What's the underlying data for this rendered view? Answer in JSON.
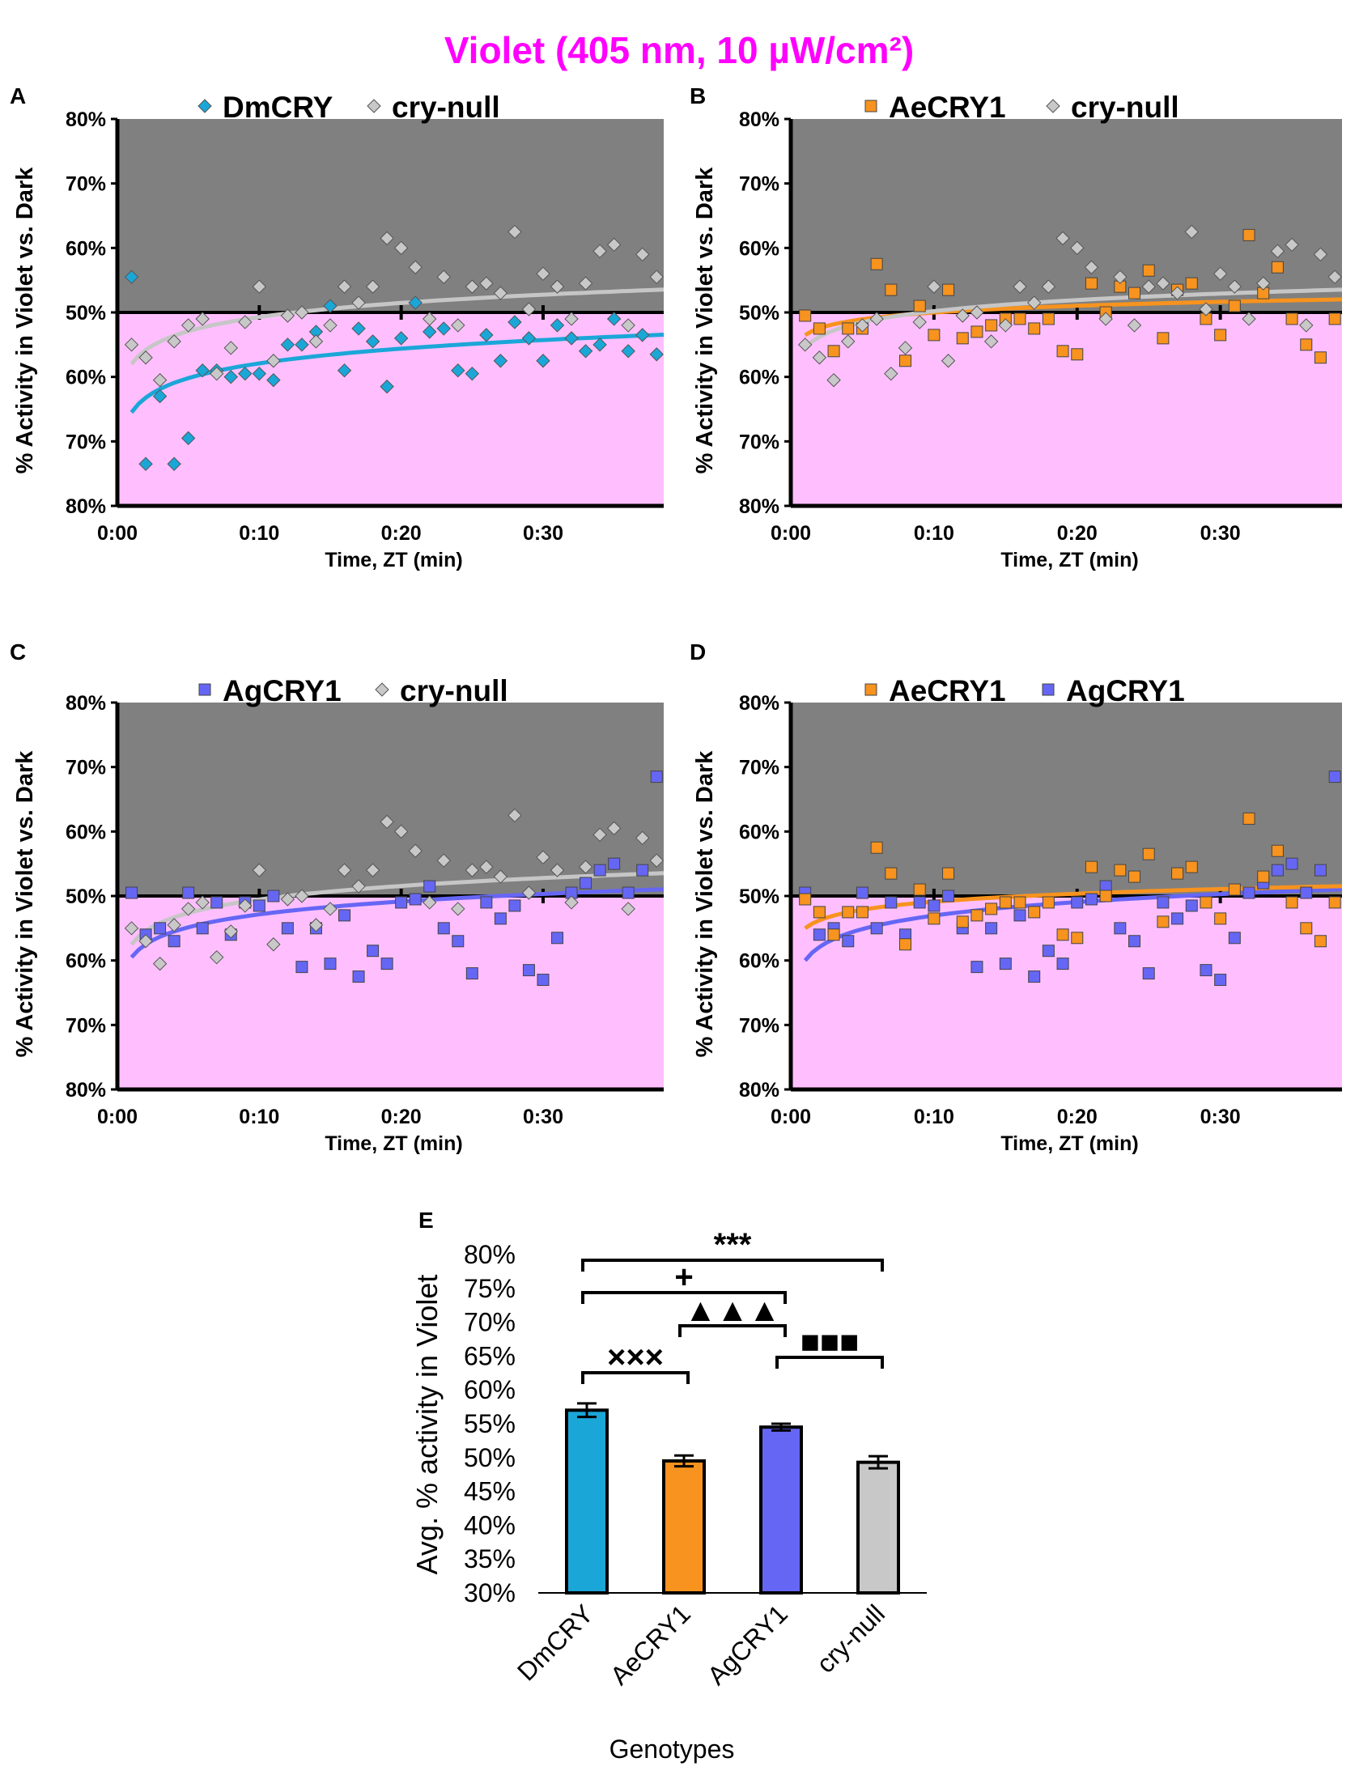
{
  "figure": {
    "title": "Violet (405 nm, 10 µW/cm²)"
  },
  "colors": {
    "DmCRY": "#1ba6d8",
    "AeCRY1": "#f7931e",
    "AgCRY1": "#6666f5",
    "cry-null": "#c8c8c8",
    "cry-null-fit": "#c6c6c6",
    "dark_bg": "#808080",
    "violet_bg": "#ffbfff",
    "title": "#ff00ff"
  },
  "chart_data": [
    {
      "id": "A",
      "type": "scatter",
      "panel_label": "A",
      "xlabel": "Time, ZT (min)",
      "ylabel": "% Activity in Violet vs. Dark",
      "xlim": [
        0,
        38.5
      ],
      "ylim": [
        -30,
        30
      ],
      "x_ticks": [
        "0:00",
        "0:10",
        "0:20",
        "0:30"
      ],
      "y_ticks": [
        "80%",
        "70%",
        "60%",
        "50%",
        "60%",
        "70%",
        "80%"
      ],
      "legend": [
        "DmCRY",
        "cry-null"
      ],
      "series": [
        {
          "name": "DmCRY",
          "marker": "diamond",
          "color_key": "DmCRY",
          "x": [
            1,
            2,
            3,
            4,
            5,
            6,
            7,
            8,
            9,
            10,
            11,
            12,
            13,
            14,
            15,
            16,
            17,
            18,
            19,
            20,
            21,
            22,
            23,
            24,
            25,
            26,
            27,
            28,
            29,
            30,
            31,
            32,
            33,
            34,
            35,
            36,
            37,
            38
          ],
          "y": [
            5.5,
            -23.5,
            -13,
            -23.5,
            -19.5,
            -9,
            -9,
            -10,
            -9.5,
            -9.5,
            -10.5,
            -5,
            -5,
            -3,
            1,
            -9,
            -2.5,
            -4.5,
            -11.5,
            -4,
            1.5,
            -3,
            -2.5,
            -9,
            -9.5,
            -3.5,
            -7.5,
            -1.5,
            -4,
            -7.5,
            -2,
            -4,
            -6,
            -5,
            -1,
            -6,
            -3.5,
            -6.5
          ],
          "fit": [
            -15.5,
            -3.5
          ]
        },
        {
          "name": "cry-null",
          "marker": "diamond",
          "color_key": "cry-null",
          "x": [
            1,
            2,
            3,
            4,
            5,
            6,
            7,
            8,
            9,
            10,
            11,
            12,
            13,
            14,
            15,
            16,
            17,
            18,
            19,
            20,
            21,
            22,
            23,
            24,
            25,
            26,
            27,
            28,
            29,
            30,
            31,
            32,
            33,
            34,
            35,
            36,
            37,
            38
          ],
          "y": [
            -5,
            -7,
            -10.5,
            -4.5,
            -2,
            -1,
            -9.5,
            -5.5,
            -1.5,
            4,
            -7.5,
            -0.5,
            0,
            -4.5,
            -2,
            4,
            1.5,
            4,
            11.5,
            10,
            7,
            -1,
            5.5,
            -2,
            4,
            4.5,
            3,
            12.5,
            0.5,
            6,
            4,
            -1,
            4.5,
            9.5,
            10.5,
            -2,
            9,
            5.5
          ],
          "fit": [
            -8,
            3.5
          ]
        }
      ]
    },
    {
      "id": "B",
      "type": "scatter",
      "panel_label": "B",
      "xlabel": "Time, ZT (min)",
      "ylabel": "% Activity in Violet vs. Dark",
      "xlim": [
        0,
        38.5
      ],
      "ylim": [
        -30,
        30
      ],
      "x_ticks": [
        "0:00",
        "0:10",
        "0:20",
        "0:30"
      ],
      "y_ticks": [
        "80%",
        "70%",
        "60%",
        "50%",
        "60%",
        "70%",
        "80%"
      ],
      "legend": [
        "AeCRY1",
        "cry-null"
      ],
      "series": [
        {
          "name": "AeCRY1",
          "marker": "square",
          "color_key": "AeCRY1",
          "x": [
            1,
            2,
            3,
            4,
            5,
            6,
            7,
            8,
            9,
            10,
            11,
            12,
            13,
            14,
            15,
            16,
            17,
            18,
            19,
            20,
            21,
            22,
            23,
            24,
            25,
            26,
            27,
            28,
            29,
            30,
            31,
            32,
            33,
            34,
            35,
            36,
            37,
            38
          ],
          "y": [
            -0.5,
            -2.5,
            -6,
            -2.5,
            -2.5,
            7.5,
            3.5,
            -7.5,
            1,
            -3.5,
            3.5,
            -4,
            -3,
            -2,
            -1,
            -1,
            -2.5,
            -1,
            -6,
            -6.5,
            4.5,
            0,
            4,
            3,
            6.5,
            -4,
            3.5,
            4.5,
            -1,
            -3.5,
            1,
            12,
            3,
            7,
            -1,
            -5,
            -7,
            -1
          ],
          "fit": [
            -3.5,
            2
          ]
        },
        {
          "name": "cry-null",
          "marker": "diamond",
          "color_key": "cry-null",
          "x": [
            1,
            2,
            3,
            4,
            5,
            6,
            7,
            8,
            9,
            10,
            11,
            12,
            13,
            14,
            15,
            16,
            17,
            18,
            19,
            20,
            21,
            22,
            23,
            24,
            25,
            26,
            27,
            28,
            29,
            30,
            31,
            32,
            33,
            34,
            35,
            36,
            37,
            38
          ],
          "y": [
            -5,
            -7,
            -10.5,
            -4.5,
            -2,
            -1,
            -9.5,
            -5.5,
            -1.5,
            4,
            -7.5,
            -0.5,
            0,
            -4.5,
            -2,
            4,
            1.5,
            4,
            11.5,
            10,
            7,
            -1,
            5.5,
            -2,
            4,
            4.5,
            3,
            12.5,
            0.5,
            6,
            4,
            -1,
            4.5,
            9.5,
            10.5,
            -2,
            9,
            5.5
          ],
          "fit": [
            -5.5,
            3.5
          ]
        }
      ]
    },
    {
      "id": "C",
      "type": "scatter",
      "panel_label": "C",
      "xlabel": "Time, ZT (min)",
      "ylabel": "% Activity in Violet vs. Dark",
      "xlim": [
        0,
        38.5
      ],
      "ylim": [
        -30,
        30
      ],
      "x_ticks": [
        "0:00",
        "0:10",
        "0:20",
        "0:30"
      ],
      "y_ticks": [
        "80%",
        "70%",
        "60%",
        "50%",
        "60%",
        "70%",
        "80%"
      ],
      "legend": [
        "AgCRY1",
        "cry-null"
      ],
      "series": [
        {
          "name": "AgCRY1",
          "marker": "square",
          "color_key": "AgCRY1",
          "x": [
            1,
            2,
            3,
            4,
            5,
            6,
            7,
            8,
            9,
            10,
            11,
            12,
            13,
            14,
            15,
            16,
            17,
            18,
            19,
            20,
            21,
            22,
            23,
            24,
            25,
            26,
            27,
            28,
            29,
            30,
            31,
            32,
            33,
            34,
            35,
            36,
            37,
            38
          ],
          "y": [
            0.5,
            -6,
            -5,
            -7,
            0.5,
            -5,
            -1,
            -6,
            -1,
            -1.5,
            0,
            -5,
            -11,
            -5,
            -10.5,
            -3,
            -12.5,
            -8.5,
            -10.5,
            -1,
            -0.5,
            1.5,
            -5,
            -7,
            -12,
            -1,
            -3.5,
            -1.5,
            -11.5,
            -13,
            -6.5,
            0.5,
            2,
            4,
            5,
            0.5,
            4,
            18.5
          ],
          "fit": [
            -9.5,
            1
          ]
        },
        {
          "name": "cry-null",
          "marker": "diamond",
          "color_key": "cry-null",
          "x": [
            1,
            2,
            3,
            4,
            5,
            6,
            7,
            8,
            9,
            10,
            11,
            12,
            13,
            14,
            15,
            16,
            17,
            18,
            19,
            20,
            21,
            22,
            23,
            24,
            25,
            26,
            27,
            28,
            29,
            30,
            31,
            32,
            33,
            34,
            35,
            36,
            37,
            38
          ],
          "y": [
            -5,
            -7,
            -10.5,
            -4.5,
            -2,
            -1,
            -9.5,
            -5.5,
            -1.5,
            4,
            -7.5,
            -0.5,
            0,
            -4.5,
            -2,
            4,
            1.5,
            4,
            11.5,
            10,
            7,
            -1,
            5.5,
            -2,
            4,
            4.5,
            3,
            12.5,
            0.5,
            6,
            4,
            -1,
            4.5,
            9.5,
            10.5,
            -2,
            9,
            5.5
          ],
          "fit": [
            -7.5,
            3.5
          ]
        }
      ]
    },
    {
      "id": "D",
      "type": "scatter",
      "panel_label": "D",
      "xlabel": "Time, ZT (min)",
      "ylabel": "% Activity in Violet vs. Dark",
      "xlim": [
        0,
        38.5
      ],
      "ylim": [
        -30,
        30
      ],
      "x_ticks": [
        "0:00",
        "0:10",
        "0:20",
        "0:30"
      ],
      "y_ticks": [
        "80%",
        "70%",
        "60%",
        "50%",
        "60%",
        "70%",
        "80%"
      ],
      "legend": [
        "AeCRY1",
        "AgCRY1"
      ],
      "series": [
        {
          "name": "AgCRY1",
          "marker": "square",
          "color_key": "AgCRY1",
          "x": [
            1,
            2,
            3,
            4,
            5,
            6,
            7,
            8,
            9,
            10,
            11,
            12,
            13,
            14,
            15,
            16,
            17,
            18,
            19,
            20,
            21,
            22,
            23,
            24,
            25,
            26,
            27,
            28,
            29,
            30,
            31,
            32,
            33,
            34,
            35,
            36,
            37,
            38
          ],
          "y": [
            0.5,
            -6,
            -5,
            -7,
            0.5,
            -5,
            -1,
            -6,
            -1,
            -1.5,
            0,
            -5,
            -11,
            -5,
            -10.5,
            -3,
            -12.5,
            -8.5,
            -10.5,
            -1,
            -0.5,
            1.5,
            -5,
            -7,
            -12,
            -1,
            -3.5,
            -1.5,
            -11.5,
            -13,
            -6.5,
            0.5,
            2,
            4,
            5,
            0.5,
            4,
            18.5
          ],
          "fit": [
            -10,
            1
          ]
        },
        {
          "name": "AeCRY1",
          "marker": "square",
          "color_key": "AeCRY1",
          "x": [
            1,
            2,
            3,
            4,
            5,
            6,
            7,
            8,
            9,
            10,
            11,
            12,
            13,
            14,
            15,
            16,
            17,
            18,
            19,
            20,
            21,
            22,
            23,
            24,
            25,
            26,
            27,
            28,
            29,
            30,
            31,
            32,
            33,
            34,
            35,
            36,
            37,
            38
          ],
          "y": [
            -0.5,
            -2.5,
            -6,
            -2.5,
            -2.5,
            7.5,
            3.5,
            -7.5,
            1,
            -3.5,
            3.5,
            -4,
            -3,
            -2,
            -1,
            -1,
            -2.5,
            -1,
            -6,
            -6.5,
            4.5,
            0,
            4,
            3,
            6.5,
            -4,
            3.5,
            4.5,
            -1,
            -3.5,
            1,
            12,
            3,
            7,
            -1,
            -5,
            -7,
            -1
          ],
          "fit": [
            -5,
            1.5
          ]
        }
      ]
    },
    {
      "id": "E",
      "type": "bar",
      "panel_label": "E",
      "xlabel": "Genotypes",
      "ylabel": "Avg. % activity in Violet",
      "categories": [
        "DmCRY",
        "AeCRY1",
        "AgCRY1",
        "cry-null"
      ],
      "values": [
        57,
        49.5,
        54.5,
        49.3
      ],
      "errors": [
        1,
        0.8,
        0.5,
        0.9
      ],
      "ylim": [
        30,
        80
      ],
      "y_ticks": [
        "80%",
        "75%",
        "70%",
        "65%",
        "60%",
        "55%",
        "50%",
        "45%",
        "40%",
        "35%",
        "30%"
      ],
      "comparisons": [
        {
          "from": 0,
          "to": 3,
          "label": "***"
        },
        {
          "from": 0,
          "to": 2,
          "label": "+"
        },
        {
          "from": 1,
          "to": 2,
          "label": "▲▲▲"
        },
        {
          "from": 2,
          "to": 3,
          "label": "■■■"
        },
        {
          "from": 0,
          "to": 1,
          "label": "×××"
        }
      ]
    }
  ]
}
